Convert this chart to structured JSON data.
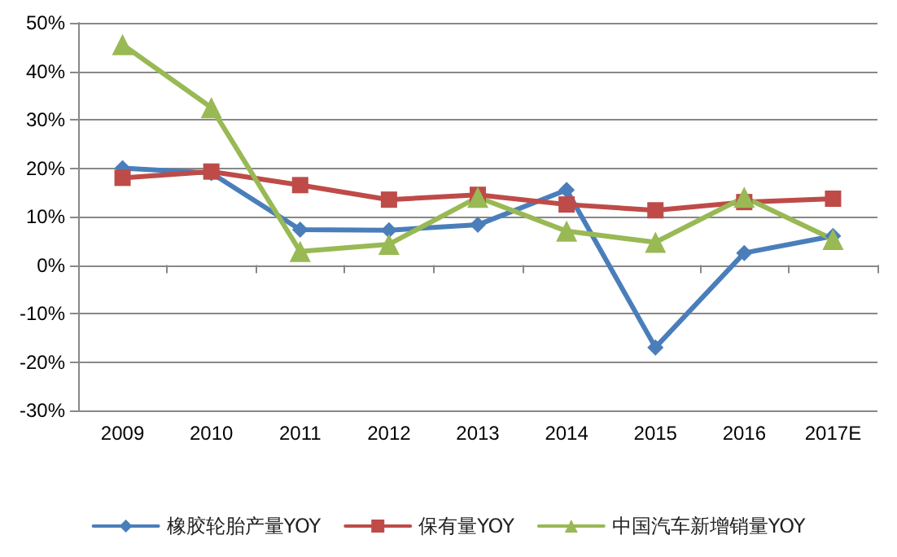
{
  "chart_data": {
    "type": "line",
    "categories": [
      "2009",
      "2010",
      "2011",
      "2012",
      "2013",
      "2014",
      "2015",
      "2016",
      "2017E"
    ],
    "series": [
      {
        "name": "橡胶轮胎产量YOY",
        "color": "#4a7ebb",
        "marker": "diamond",
        "values": [
          20,
          19,
          7.3,
          7.2,
          8.3,
          15.5,
          -17,
          2.5,
          6
        ]
      },
      {
        "name": "保有量YOY",
        "color": "#be4b48",
        "marker": "square",
        "values": [
          18,
          19.3,
          16.5,
          13.5,
          14.5,
          12.5,
          11.3,
          13,
          13.7
        ]
      },
      {
        "name": "中国汽车新增销量YOY",
        "color": "#98b954",
        "marker": "triangle",
        "values": [
          45.5,
          32.5,
          2.8,
          4.3,
          14,
          7,
          4.7,
          14,
          5.3
        ]
      }
    ],
    "ylim": [
      -30,
      50
    ],
    "yticks": [
      {
        "value": -30,
        "label": "-30%"
      },
      {
        "value": -20,
        "label": "-20%"
      },
      {
        "value": -10,
        "label": "-10%"
      },
      {
        "value": 0,
        "label": "0%"
      },
      {
        "value": 10,
        "label": "10%"
      },
      {
        "value": 20,
        "label": "20%"
      },
      {
        "value": 30,
        "label": "30%"
      },
      {
        "value": 40,
        "label": "40%"
      },
      {
        "value": 50,
        "label": "50%"
      }
    ],
    "grid": "y",
    "legend": "bottom",
    "line_style": "solid"
  }
}
